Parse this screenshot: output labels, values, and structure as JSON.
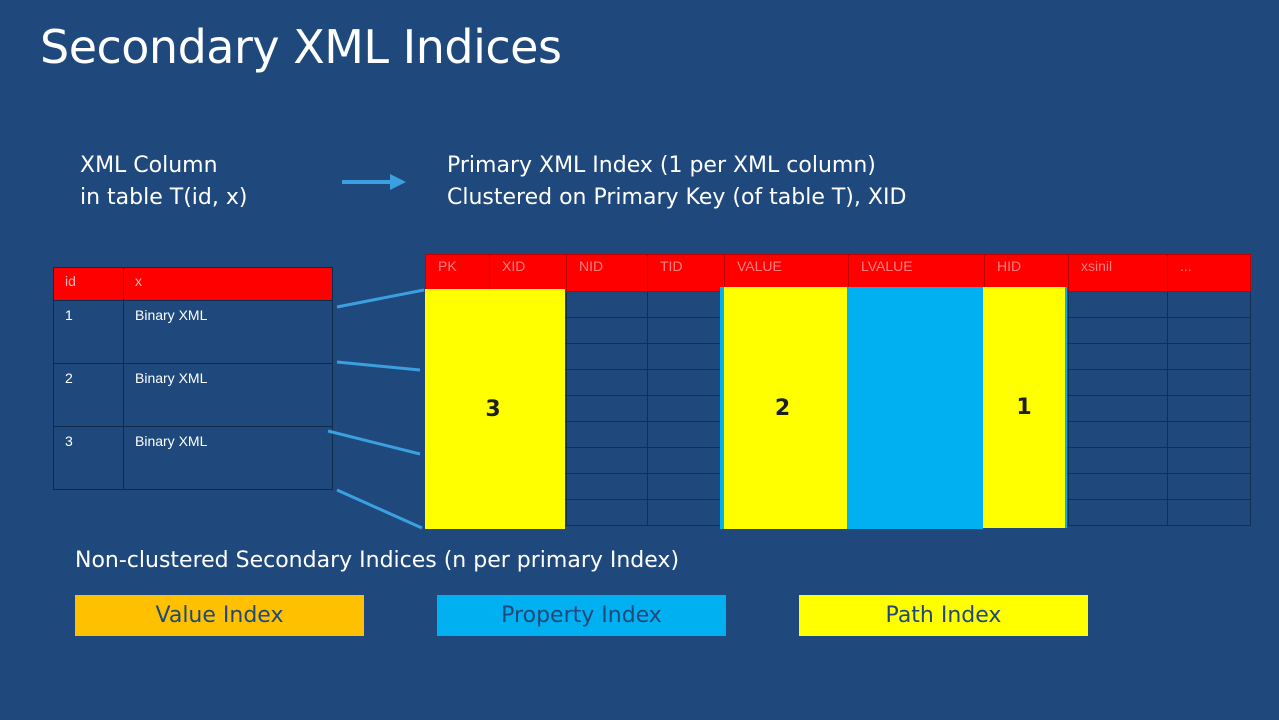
{
  "title": "Secondary XML Indices",
  "xml_column": {
    "line1": "XML Column",
    "line2": "in table T(id, x)"
  },
  "primary_index": {
    "line1": "Primary XML Index (1 per XML column)",
    "line2": "Clustered on Primary Key (of table T), XID"
  },
  "source_table": {
    "headers": [
      "id",
      "x"
    ],
    "rows": [
      [
        "1",
        "Binary XML"
      ],
      [
        "2",
        "Binary XML"
      ],
      [
        "3",
        "Binary XML"
      ]
    ]
  },
  "index_grid": {
    "headers": [
      "PK",
      "XID",
      "NID",
      "TID",
      "VALUE",
      "LVALUE",
      "HID",
      "xsinil",
      "..."
    ]
  },
  "overlays": {
    "pk_label": "3",
    "value_label": "2",
    "hid_label": "1"
  },
  "nonclustered": "Non-clustered Secondary Indices (n per primary Index)",
  "legend": {
    "value": "Value Index",
    "property": "Property Index",
    "path": "Path Index"
  },
  "colors": {
    "background": "#1f497d",
    "header_red": "#ff0000",
    "path_yellow": "#ffff00",
    "property_blue": "#00b0f0",
    "value_orange": "#ffc000"
  }
}
